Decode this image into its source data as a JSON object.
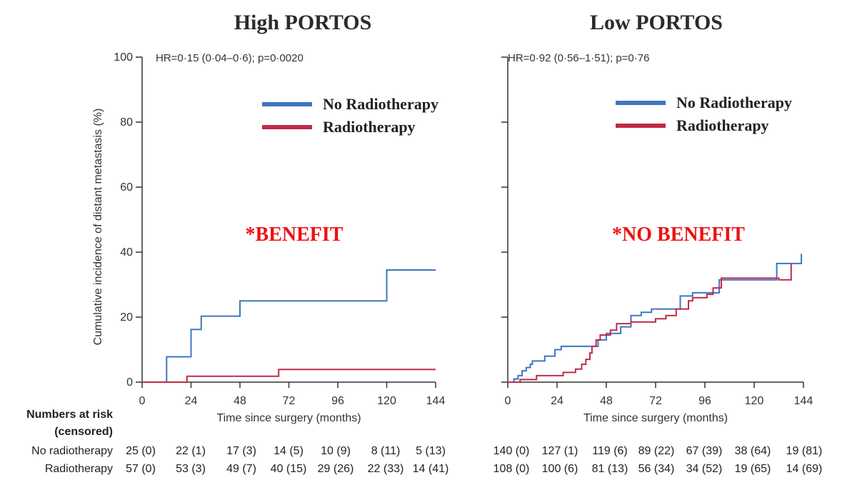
{
  "chart_data": [
    {
      "type": "line",
      "title": "High PORTOS",
      "stat_text": "HR=0·15 (0·04–0·6); p=0·0020",
      "annotation": "*BENEFIT",
      "ylabel": "Cumulative incidence of distant metastasis (%)",
      "xlabel": "Time since surgery (months)",
      "xlim": [
        0,
        144
      ],
      "ylim": [
        0,
        100
      ],
      "xticks": [
        "0",
        "24",
        "48",
        "72",
        "96",
        "120",
        "144"
      ],
      "yticks": [
        "0",
        "20",
        "40",
        "60",
        "80",
        "100"
      ],
      "legend_position": "top-right",
      "grid": false,
      "series": [
        {
          "name": "No Radiotherapy",
          "color": "#3f76c0",
          "step_points": [
            [
              0,
              0
            ],
            [
              12,
              0
            ],
            [
              12,
              7.8
            ],
            [
              24,
              7.8
            ],
            [
              24,
              16.2
            ],
            [
              29,
              16.2
            ],
            [
              29,
              20.3
            ],
            [
              48,
              20.3
            ],
            [
              48,
              25
            ],
            [
              120,
              25
            ],
            [
              120,
              34.5
            ],
            [
              144,
              34.5
            ]
          ]
        },
        {
          "name": "Radiotherapy",
          "color": "#c02a48",
          "step_points": [
            [
              0,
              0
            ],
            [
              22,
              0
            ],
            [
              22,
              1.8
            ],
            [
              67,
              1.8
            ],
            [
              67,
              3.9
            ],
            [
              144,
              3.9
            ]
          ]
        }
      ],
      "risk_table": {
        "header_line1": "Numbers at risk",
        "header_line2": "(censored)",
        "rows": [
          {
            "label": "No radiotherapy",
            "values": [
              "25 (0)",
              "22 (1)",
              "17 (3)",
              "14 (5)",
              "10 (9)",
              "8 (11)",
              "5 (13)"
            ]
          },
          {
            "label": "Radiotherapy",
            "values": [
              "57 (0)",
              "53 (3)",
              "49 (7)",
              "40 (15)",
              "29 (26)",
              "22 (33)",
              "14 (41)"
            ]
          }
        ]
      }
    },
    {
      "type": "line",
      "title": "Low PORTOS",
      "stat_text": "HR=0·92 (0·56–1·51); p=0·76",
      "annotation": "*NO BENEFIT",
      "xlabel": "Time since surgery (months)",
      "xlim": [
        0,
        144
      ],
      "ylim": [
        0,
        100
      ],
      "xticks": [
        "0",
        "24",
        "48",
        "72",
        "96",
        "120",
        "144"
      ],
      "legend_position": "top-right",
      "grid": false,
      "series": [
        {
          "name": "No Radiotherapy",
          "color": "#3f76c0",
          "step_points": [
            [
              0,
              0
            ],
            [
              3,
              0
            ],
            [
              3,
              1
            ],
            [
              5,
              1
            ],
            [
              5,
              2
            ],
            [
              7,
              2
            ],
            [
              7,
              3.5
            ],
            [
              9,
              3.5
            ],
            [
              9,
              4.5
            ],
            [
              11,
              4.5
            ],
            [
              11,
              5.5
            ],
            [
              12,
              5.5
            ],
            [
              12,
              6.5
            ],
            [
              18,
              6.5
            ],
            [
              18,
              8
            ],
            [
              23,
              8
            ],
            [
              23,
              10
            ],
            [
              26,
              10
            ],
            [
              26,
              11
            ],
            [
              44,
              11
            ],
            [
              44,
              13
            ],
            [
              48,
              13
            ],
            [
              48,
              15
            ],
            [
              55,
              15
            ],
            [
              55,
              17
            ],
            [
              60,
              17
            ],
            [
              60,
              20.5
            ],
            [
              65,
              20.5
            ],
            [
              65,
              21.5
            ],
            [
              70,
              21.5
            ],
            [
              70,
              22.5
            ],
            [
              84,
              22.5
            ],
            [
              84,
              26.5
            ],
            [
              90,
              26.5
            ],
            [
              90,
              27.5
            ],
            [
              103,
              27.5
            ],
            [
              103,
              31.5
            ],
            [
              131,
              31.5
            ],
            [
              131,
              36.5
            ],
            [
              143,
              36.5
            ],
            [
              143,
              39.5
            ]
          ]
        },
        {
          "name": "Radiotherapy",
          "color": "#c02a48",
          "step_points": [
            [
              0,
              0
            ],
            [
              6,
              0
            ],
            [
              6,
              0.8
            ],
            [
              14,
              0.8
            ],
            [
              14,
              2
            ],
            [
              27,
              2
            ],
            [
              27,
              3
            ],
            [
              33,
              3
            ],
            [
              33,
              4
            ],
            [
              36,
              4
            ],
            [
              36,
              5.5
            ],
            [
              38,
              5.5
            ],
            [
              38,
              7
            ],
            [
              40,
              7
            ],
            [
              40,
              9
            ],
            [
              41,
              9
            ],
            [
              41,
              11
            ],
            [
              43,
              11
            ],
            [
              43,
              13
            ],
            [
              45,
              13
            ],
            [
              45,
              14.5
            ],
            [
              50,
              14.5
            ],
            [
              50,
              16
            ],
            [
              53,
              16
            ],
            [
              53,
              18
            ],
            [
              60,
              18
            ],
            [
              60,
              18.5
            ],
            [
              72,
              18.5
            ],
            [
              72,
              19.5
            ],
            [
              77,
              19.5
            ],
            [
              77,
              20.5
            ],
            [
              82,
              20.5
            ],
            [
              82,
              22.5
            ],
            [
              88,
              22.5
            ],
            [
              88,
              25
            ],
            [
              90,
              25
            ],
            [
              90,
              26
            ],
            [
              97,
              26
            ],
            [
              97,
              27
            ],
            [
              100,
              27
            ],
            [
              100,
              29
            ],
            [
              104,
              29
            ],
            [
              104,
              32
            ],
            [
              132,
              32
            ],
            [
              132,
              31.5
            ],
            [
              138,
              31.5
            ],
            [
              138,
              36.5
            ]
          ]
        }
      ],
      "risk_table": {
        "rows": [
          {
            "label": "No radiotherapy",
            "values": [
              "140 (0)",
              "127 (1)",
              "119 (6)",
              "89 (22)",
              "67 (39)",
              "38 (64)",
              "19 (81)"
            ]
          },
          {
            "label": "Radiotherapy",
            "values": [
              "108 (0)",
              "100 (6)",
              "81 (13)",
              "56 (34)",
              "34 (52)",
              "19 (65)",
              "14 (69)"
            ]
          }
        ]
      }
    }
  ]
}
